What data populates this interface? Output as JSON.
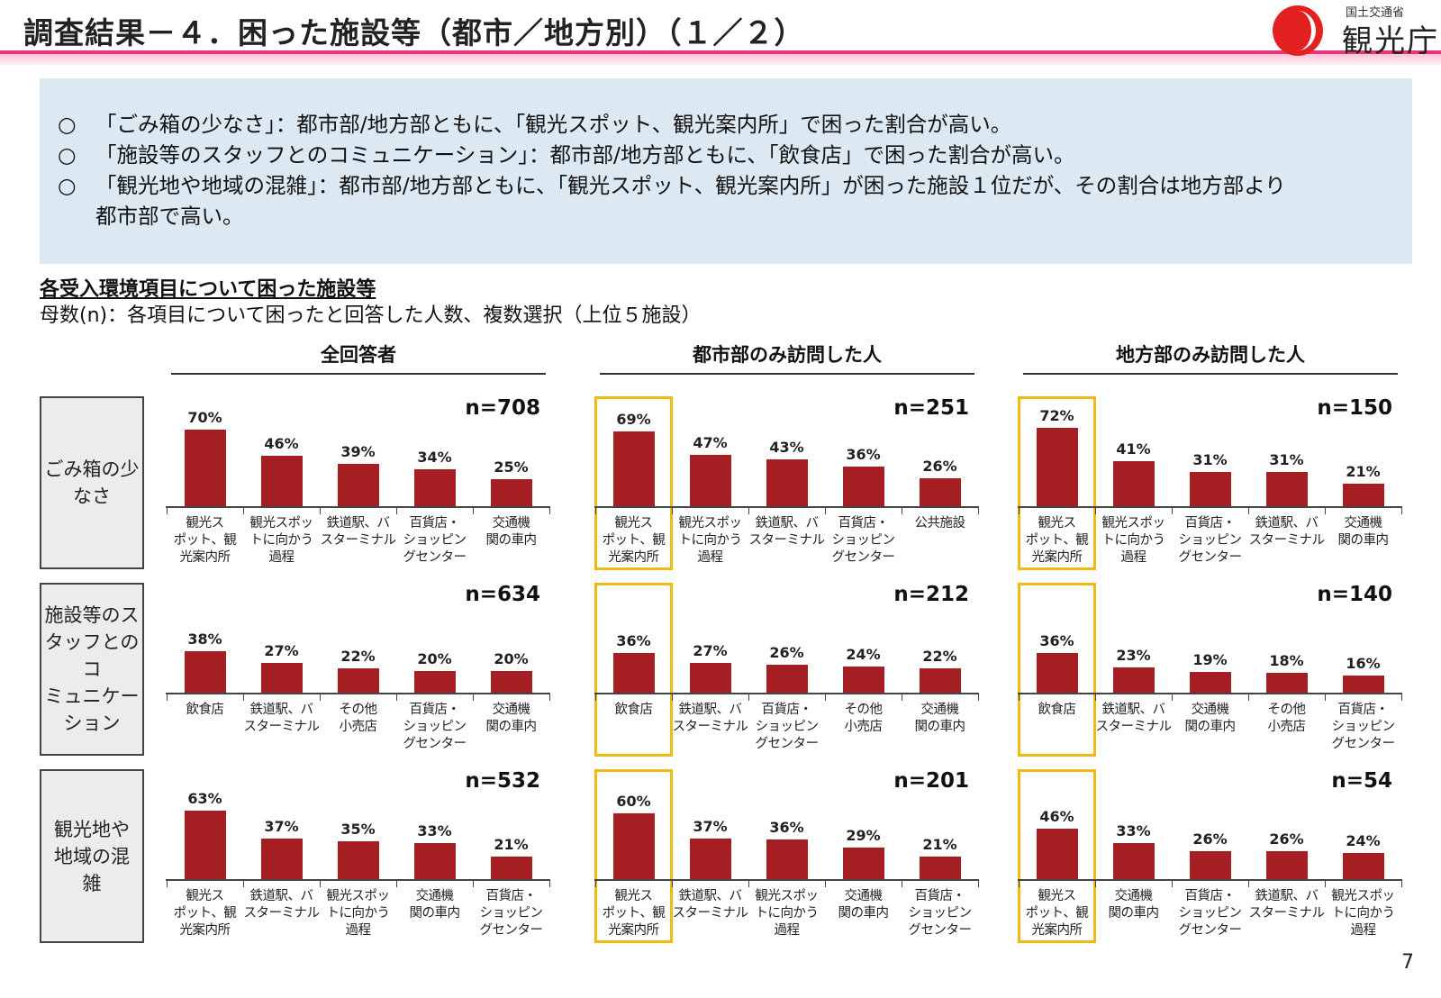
{
  "header": {
    "title": "調査結果－４．困った施設等（都市／地方別）（１／２）",
    "logo_small": "国土交通省",
    "logo_main": "観光庁"
  },
  "summary": {
    "bullet": "○",
    "lines": [
      "「ごみ箱の少なさ」：都市部/地方部ともに、「観光スポット、観光案内所」で困った割合が高い。",
      "「施設等のスタッフとのコミュニケーション」：都市部/地方部ともに、「飲食店」で困った割合が高い。",
      "「観光地や地域の混雑」：都市部/地方部ともに、「観光スポット、観光案内所」が困った施設１位だが、その割合は地方部より"
    ],
    "continuation": "都市部で高い。"
  },
  "section": {
    "title": "各受入環境項目について困った施設等",
    "subtitle": "母数(n)：各項目について困ったと回答した人数、複数選択（上位５施設）"
  },
  "column_headers": [
    "全回答者",
    "都市部のみ訪問した人",
    "地方部のみ訪問した人"
  ],
  "row_labels": [
    "ごみ箱の少\nなさ",
    "施設等のス\nタッフとのコ\nミュニケー\nション",
    "観光地や\n地域の混\n雑"
  ],
  "page_number": "7",
  "colors": {
    "bar": "#a51e22",
    "highlight": "#f2b814",
    "title_bar": "#e8357a",
    "summary_bg": "#dde9f2",
    "logo_red": "#e32121"
  },
  "chart_data": [
    {
      "type": "bar",
      "row": "ごみ箱の少なさ",
      "column": "全回答者",
      "n": "n=708",
      "highlight_first": false,
      "categories": [
        "観光ス\nポット、観\n光案内所",
        "観光スポッ\nトに向かう\n過程",
        "鉄道駅、バ\nスターミナル",
        "百貨店・\nショッピン\nグセンター",
        "交通機\n関の車内"
      ],
      "values": [
        70,
        46,
        39,
        34,
        25
      ],
      "labels": [
        "70%",
        "46%",
        "39%",
        "34%",
        "25%"
      ]
    },
    {
      "type": "bar",
      "row": "ごみ箱の少なさ",
      "column": "都市部のみ訪問した人",
      "n": "n=251",
      "highlight_first": true,
      "categories": [
        "観光ス\nポット、観\n光案内所",
        "観光スポッ\nトに向かう\n過程",
        "鉄道駅、バ\nスターミナル",
        "百貨店・\nショッピン\nグセンター",
        "公共施設"
      ],
      "values": [
        69,
        47,
        43,
        36,
        26
      ],
      "labels": [
        "69%",
        "47%",
        "43%",
        "36%",
        "26%"
      ]
    },
    {
      "type": "bar",
      "row": "ごみ箱の少なさ",
      "column": "地方部のみ訪問した人",
      "n": "n=150",
      "highlight_first": true,
      "categories": [
        "観光ス\nポット、観\n光案内所",
        "観光スポッ\nトに向かう\n過程",
        "百貨店・\nショッピン\nグセンター",
        "鉄道駅、バ\nスターミナル",
        "交通機\n関の車内"
      ],
      "values": [
        72,
        41,
        31,
        31,
        21
      ],
      "labels": [
        "72%",
        "41%",
        "31%",
        "31%",
        "21%"
      ]
    },
    {
      "type": "bar",
      "row": "施設等のスタッフとのコミュニケーション",
      "column": "全回答者",
      "n": "n=634",
      "highlight_first": false,
      "categories": [
        "飲食店",
        "鉄道駅、バ\nスターミナル",
        "その他\n小売店",
        "百貨店・\nショッピン\nグセンター",
        "交通機\n関の車内"
      ],
      "values": [
        38,
        27,
        22,
        20,
        20
      ],
      "labels": [
        "38%",
        "27%",
        "22%",
        "20%",
        "20%"
      ]
    },
    {
      "type": "bar",
      "row": "施設等のスタッフとのコミュニケーション",
      "column": "都市部のみ訪問した人",
      "n": "n=212",
      "highlight_first": true,
      "categories": [
        "飲食店",
        "鉄道駅、バ\nスターミナル",
        "百貨店・\nショッピン\nグセンター",
        "その他\n小売店",
        "交通機\n関の車内"
      ],
      "values": [
        36,
        27,
        26,
        24,
        22
      ],
      "labels": [
        "36%",
        "27%",
        "26%",
        "24%",
        "22%"
      ]
    },
    {
      "type": "bar",
      "row": "施設等のスタッフとのコミュニケーション",
      "column": "地方部のみ訪問した人",
      "n": "n=140",
      "highlight_first": true,
      "categories": [
        "飲食店",
        "鉄道駅、バ\nスターミナル",
        "交通機\n関の車内",
        "その他\n小売店",
        "百貨店・\nショッピン\nグセンター"
      ],
      "values": [
        36,
        23,
        19,
        18,
        16
      ],
      "labels": [
        "36%",
        "23%",
        "19%",
        "18%",
        "16%"
      ]
    },
    {
      "type": "bar",
      "row": "観光地や地域の混雑",
      "column": "全回答者",
      "n": "n=532",
      "highlight_first": false,
      "categories": [
        "観光ス\nポット、観\n光案内所",
        "鉄道駅、バ\nスターミナル",
        "観光スポッ\nトに向かう\n過程",
        "交通機\n関の車内",
        "百貨店・\nショッピン\nグセンター"
      ],
      "values": [
        63,
        37,
        35,
        33,
        21
      ],
      "labels": [
        "63%",
        "37%",
        "35%",
        "33%",
        "21%"
      ]
    },
    {
      "type": "bar",
      "row": "観光地や地域の混雑",
      "column": "都市部のみ訪問した人",
      "n": "n=201",
      "highlight_first": true,
      "categories": [
        "観光ス\nポット、観\n光案内所",
        "鉄道駅、バ\nスターミナル",
        "観光スポッ\nトに向かう\n過程",
        "交通機\n関の車内",
        "百貨店・\nショッピン\nグセンター"
      ],
      "values": [
        60,
        37,
        36,
        29,
        21
      ],
      "labels": [
        "60%",
        "37%",
        "36%",
        "29%",
        "21%"
      ]
    },
    {
      "type": "bar",
      "row": "観光地や地域の混雑",
      "column": "地方部のみ訪問した人",
      "n": "n=54",
      "highlight_first": true,
      "categories": [
        "観光ス\nポット、観\n光案内所",
        "交通機\n関の車内",
        "百貨店・\nショッピン\nグセンター",
        "鉄道駅、バ\nスターミナル",
        "観光スポッ\nトに向かう\n過程"
      ],
      "values": [
        46,
        33,
        26,
        26,
        24
      ],
      "labels": [
        "46%",
        "33%",
        "26%",
        "26%",
        "24%"
      ]
    }
  ]
}
